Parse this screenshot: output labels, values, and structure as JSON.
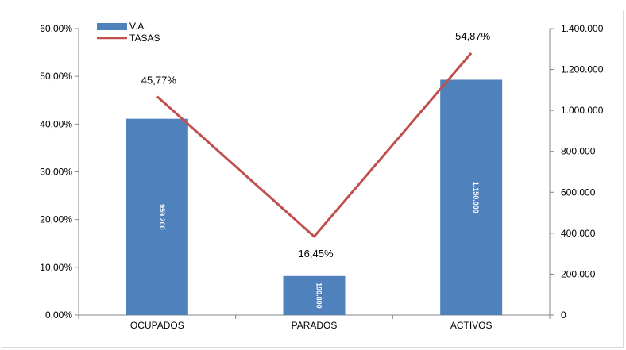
{
  "chart_data": {
    "type": "bar",
    "categories": [
      "OCUPADOS",
      "PARADOS",
      "ACTIVOS"
    ],
    "series": [
      {
        "name": "V.A.",
        "type": "bar",
        "axis": "right",
        "values": [
          959200,
          190800,
          1150000
        ],
        "value_labels": [
          "959.200",
          "190.800",
          "1.150.000"
        ],
        "color": "#4f81bd"
      },
      {
        "name": "TASAS",
        "type": "line",
        "axis": "left",
        "values": [
          45.77,
          16.45,
          54.87
        ],
        "value_labels": [
          "45,77%",
          "16,45%",
          "54,87%"
        ],
        "color": "#c0504d"
      }
    ],
    "left_axis": {
      "min": 0,
      "max": 60,
      "step": 10,
      "tick_labels": [
        "0,00%",
        "10,00%",
        "20,00%",
        "30,00%",
        "40,00%",
        "50,00%",
        "60,00%"
      ]
    },
    "right_axis": {
      "min": 0,
      "max": 1400000,
      "step": 200000,
      "tick_labels": [
        "0",
        "200.000",
        "400.000",
        "600.000",
        "800.000",
        "1.000.000",
        "1.200.000",
        "1.400.000"
      ]
    },
    "legend_position": "top-left",
    "grid": false
  }
}
